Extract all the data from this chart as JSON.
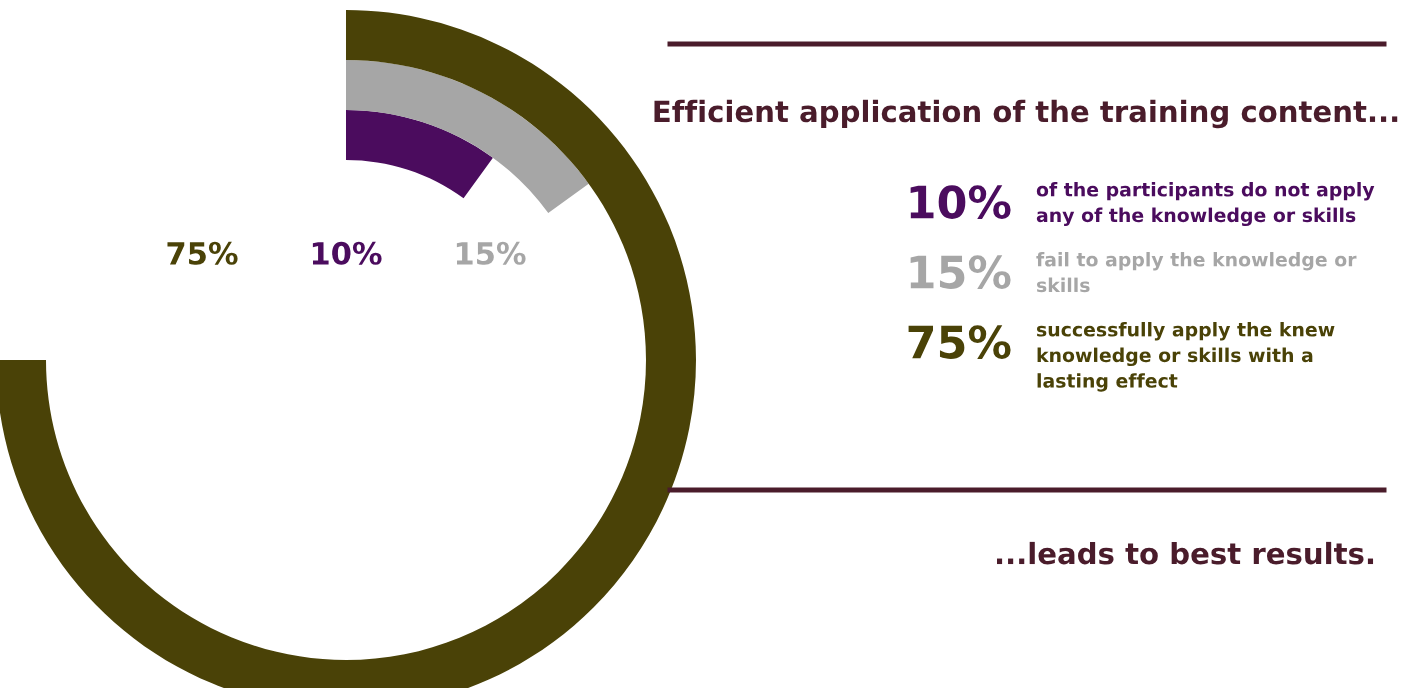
{
  "chart_data": {
    "type": "other",
    "title": "Efficient application of the training content...",
    "categories": [
      "of the participants do not apply any of the knowledge or skills",
      "fail to apply the knowledge or skills",
      "successfully apply the knew knowledge or skills with a lasting effect"
    ],
    "values": [
      10,
      15,
      75
    ],
    "colors": [
      "#4b0c5e",
      "#a6a6a6",
      "#4a4207"
    ],
    "value_labels": [
      "10%",
      "15%",
      "75%"
    ],
    "annotations": [
      "...leads to best results."
    ]
  }
}
